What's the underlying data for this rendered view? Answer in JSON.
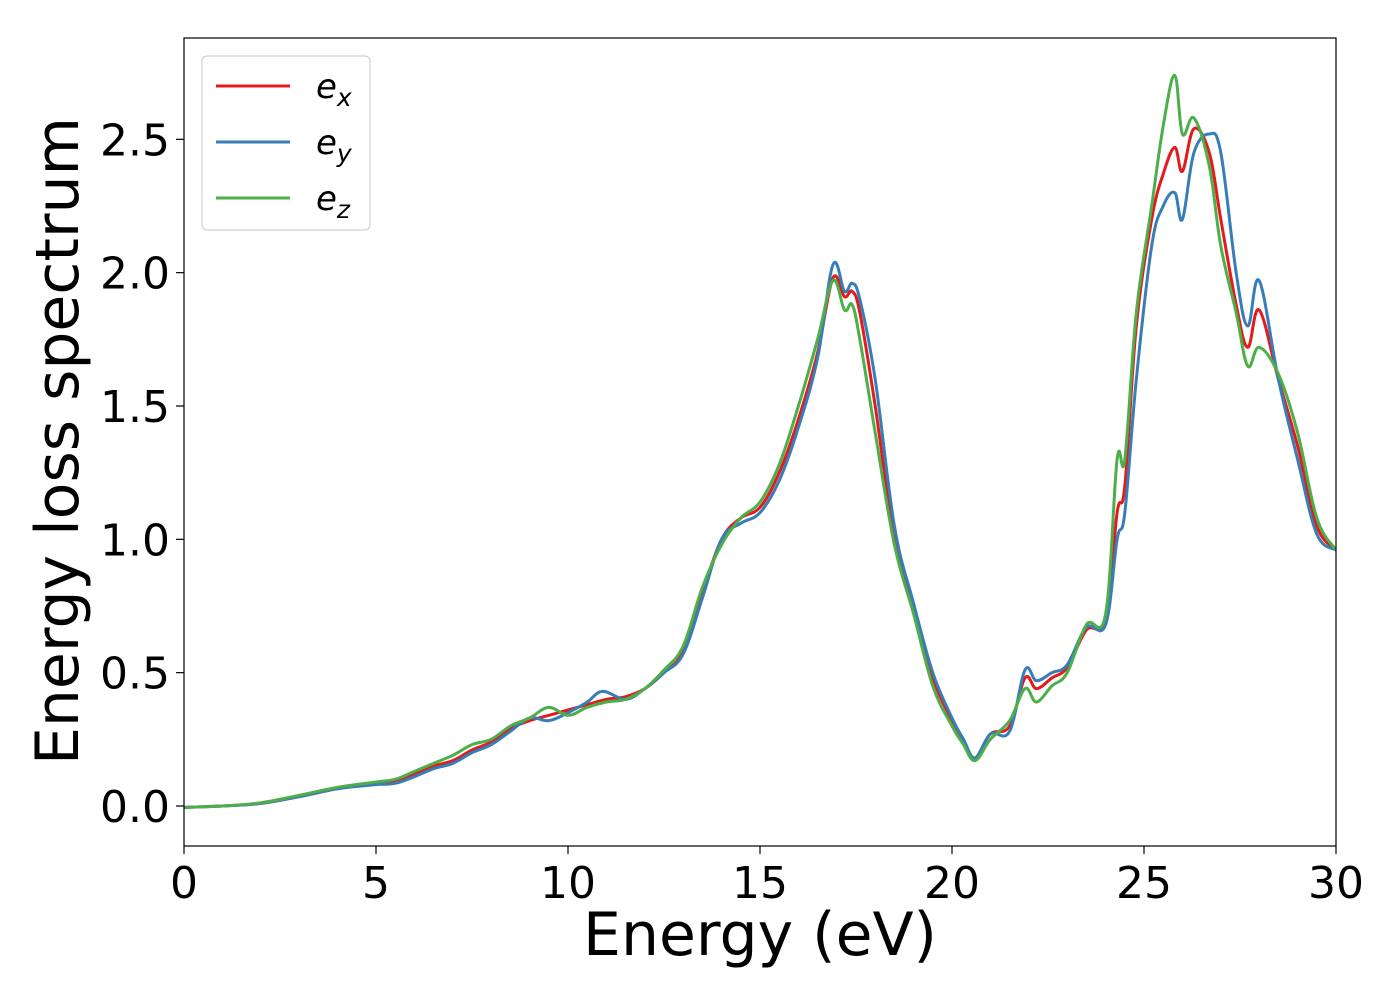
{
  "chart_data": {
    "type": "line",
    "title": "",
    "xlabel": "Energy (eV)",
    "ylabel": "Energy loss spectrum",
    "xlim": [
      0,
      30
    ],
    "ylim": [
      -0.15,
      2.88
    ],
    "xticks": [
      0,
      5,
      10,
      15,
      20,
      25,
      30
    ],
    "yticks": [
      0.0,
      0.5,
      1.0,
      1.5,
      2.0,
      2.5
    ],
    "xtick_labels": [
      "0",
      "5",
      "10",
      "15",
      "20",
      "25",
      "30"
    ],
    "ytick_labels": [
      "0.0",
      "0.5",
      "1.0",
      "1.5",
      "2.0",
      "2.5"
    ],
    "grid": false,
    "legend_position": "top-left",
    "series": [
      {
        "name": "e",
        "subscript": "x",
        "color": "#e41a1c",
        "points": [
          [
            0,
            -0.005
          ],
          [
            1,
            0.0
          ],
          [
            2,
            0.01
          ],
          [
            3,
            0.035
          ],
          [
            4,
            0.065
          ],
          [
            5,
            0.085
          ],
          [
            5.5,
            0.09
          ],
          [
            6,
            0.12
          ],
          [
            6.5,
            0.15
          ],
          [
            7,
            0.17
          ],
          [
            7.5,
            0.21
          ],
          [
            8,
            0.24
          ],
          [
            8.5,
            0.29
          ],
          [
            9,
            0.32
          ],
          [
            9.5,
            0.34
          ],
          [
            10,
            0.36
          ],
          [
            10.5,
            0.38
          ],
          [
            11,
            0.4
          ],
          [
            11.5,
            0.41
          ],
          [
            12,
            0.44
          ],
          [
            12.5,
            0.5
          ],
          [
            13,
            0.58
          ],
          [
            13.5,
            0.8
          ],
          [
            14,
            1.0
          ],
          [
            14.5,
            1.08
          ],
          [
            15,
            1.12
          ],
          [
            15.5,
            1.25
          ],
          [
            16,
            1.45
          ],
          [
            16.5,
            1.7
          ],
          [
            16.9,
            1.98
          ],
          [
            17.2,
            1.91
          ],
          [
            17.4,
            1.93
          ],
          [
            17.6,
            1.85
          ],
          [
            18,
            1.5
          ],
          [
            18.5,
            1.0
          ],
          [
            19,
            0.75
          ],
          [
            19.5,
            0.48
          ],
          [
            20,
            0.32
          ],
          [
            20.3,
            0.24
          ],
          [
            20.6,
            0.18
          ],
          [
            21,
            0.27
          ],
          [
            21.5,
            0.3
          ],
          [
            21.9,
            0.48
          ],
          [
            22.2,
            0.44
          ],
          [
            22.6,
            0.48
          ],
          [
            23,
            0.52
          ],
          [
            23.5,
            0.66
          ],
          [
            24,
            0.7
          ],
          [
            24.3,
            1.1
          ],
          [
            24.5,
            1.2
          ],
          [
            24.8,
            1.8
          ],
          [
            25.2,
            2.2
          ],
          [
            25.5,
            2.37
          ],
          [
            25.8,
            2.47
          ],
          [
            26,
            2.38
          ],
          [
            26.3,
            2.54
          ],
          [
            26.7,
            2.45
          ],
          [
            27,
            2.2
          ],
          [
            27.4,
            1.88
          ],
          [
            27.7,
            1.72
          ],
          [
            28,
            1.86
          ],
          [
            28.5,
            1.6
          ],
          [
            29,
            1.35
          ],
          [
            29.5,
            1.05
          ],
          [
            30,
            0.96
          ]
        ]
      },
      {
        "name": "e",
        "subscript": "y",
        "color": "#377eb8",
        "points": [
          [
            0,
            -0.005
          ],
          [
            1,
            0.0
          ],
          [
            2,
            0.01
          ],
          [
            3,
            0.035
          ],
          [
            4,
            0.065
          ],
          [
            5,
            0.08
          ],
          [
            5.5,
            0.085
          ],
          [
            6,
            0.11
          ],
          [
            6.5,
            0.14
          ],
          [
            7,
            0.16
          ],
          [
            7.5,
            0.2
          ],
          [
            8,
            0.23
          ],
          [
            8.5,
            0.28
          ],
          [
            9,
            0.33
          ],
          [
            9.5,
            0.32
          ],
          [
            10,
            0.35
          ],
          [
            10.5,
            0.39
          ],
          [
            10.9,
            0.43
          ],
          [
            11.5,
            0.4
          ],
          [
            12,
            0.44
          ],
          [
            12.5,
            0.5
          ],
          [
            13,
            0.57
          ],
          [
            13.5,
            0.78
          ],
          [
            14,
            1.0
          ],
          [
            14.5,
            1.06
          ],
          [
            15,
            1.1
          ],
          [
            15.5,
            1.22
          ],
          [
            16,
            1.42
          ],
          [
            16.5,
            1.68
          ],
          [
            16.9,
            2.03
          ],
          [
            17.2,
            1.93
          ],
          [
            17.4,
            1.96
          ],
          [
            17.6,
            1.9
          ],
          [
            18,
            1.6
          ],
          [
            18.5,
            1.05
          ],
          [
            19,
            0.76
          ],
          [
            19.5,
            0.5
          ],
          [
            20,
            0.33
          ],
          [
            20.3,
            0.25
          ],
          [
            20.6,
            0.18
          ],
          [
            21,
            0.27
          ],
          [
            21.5,
            0.28
          ],
          [
            21.9,
            0.51
          ],
          [
            22.2,
            0.47
          ],
          [
            22.6,
            0.5
          ],
          [
            23,
            0.53
          ],
          [
            23.5,
            0.67
          ],
          [
            24,
            0.68
          ],
          [
            24.3,
            1.0
          ],
          [
            24.5,
            1.1
          ],
          [
            24.8,
            1.6
          ],
          [
            25.2,
            2.1
          ],
          [
            25.5,
            2.25
          ],
          [
            25.8,
            2.3
          ],
          [
            26,
            2.2
          ],
          [
            26.3,
            2.45
          ],
          [
            26.7,
            2.52
          ],
          [
            27,
            2.45
          ],
          [
            27.4,
            2.0
          ],
          [
            27.7,
            1.8
          ],
          [
            28,
            1.97
          ],
          [
            28.5,
            1.6
          ],
          [
            29,
            1.3
          ],
          [
            29.5,
            1.02
          ],
          [
            30,
            0.96
          ]
        ]
      },
      {
        "name": "e",
        "subscript": "z",
        "color": "#4daf4a",
        "points": [
          [
            0,
            -0.005
          ],
          [
            1,
            0.0
          ],
          [
            2,
            0.012
          ],
          [
            3,
            0.04
          ],
          [
            4,
            0.07
          ],
          [
            5,
            0.09
          ],
          [
            5.5,
            0.1
          ],
          [
            6,
            0.13
          ],
          [
            6.5,
            0.16
          ],
          [
            7,
            0.19
          ],
          [
            7.5,
            0.23
          ],
          [
            8,
            0.25
          ],
          [
            8.5,
            0.3
          ],
          [
            9,
            0.33
          ],
          [
            9.5,
            0.37
          ],
          [
            10,
            0.34
          ],
          [
            10.5,
            0.37
          ],
          [
            11,
            0.39
          ],
          [
            11.5,
            0.4
          ],
          [
            12,
            0.44
          ],
          [
            12.5,
            0.51
          ],
          [
            13,
            0.6
          ],
          [
            13.5,
            0.82
          ],
          [
            14,
            0.98
          ],
          [
            14.5,
            1.08
          ],
          [
            15,
            1.14
          ],
          [
            15.5,
            1.28
          ],
          [
            16,
            1.5
          ],
          [
            16.5,
            1.75
          ],
          [
            16.9,
            1.97
          ],
          [
            17.2,
            1.86
          ],
          [
            17.4,
            1.88
          ],
          [
            17.6,
            1.75
          ],
          [
            18,
            1.4
          ],
          [
            18.5,
            0.98
          ],
          [
            19,
            0.72
          ],
          [
            19.5,
            0.45
          ],
          [
            20,
            0.3
          ],
          [
            20.3,
            0.23
          ],
          [
            20.6,
            0.17
          ],
          [
            21,
            0.25
          ],
          [
            21.5,
            0.32
          ],
          [
            21.9,
            0.44
          ],
          [
            22.2,
            0.39
          ],
          [
            22.6,
            0.45
          ],
          [
            23,
            0.5
          ],
          [
            23.5,
            0.68
          ],
          [
            24,
            0.72
          ],
          [
            24.3,
            1.3
          ],
          [
            24.5,
            1.3
          ],
          [
            24.8,
            1.85
          ],
          [
            25.2,
            2.25
          ],
          [
            25.5,
            2.55
          ],
          [
            25.8,
            2.74
          ],
          [
            26,
            2.52
          ],
          [
            26.3,
            2.58
          ],
          [
            26.7,
            2.4
          ],
          [
            27,
            2.1
          ],
          [
            27.4,
            1.85
          ],
          [
            27.7,
            1.65
          ],
          [
            28,
            1.72
          ],
          [
            28.5,
            1.62
          ],
          [
            29,
            1.4
          ],
          [
            29.5,
            1.08
          ],
          [
            30,
            0.96
          ]
        ]
      }
    ]
  }
}
